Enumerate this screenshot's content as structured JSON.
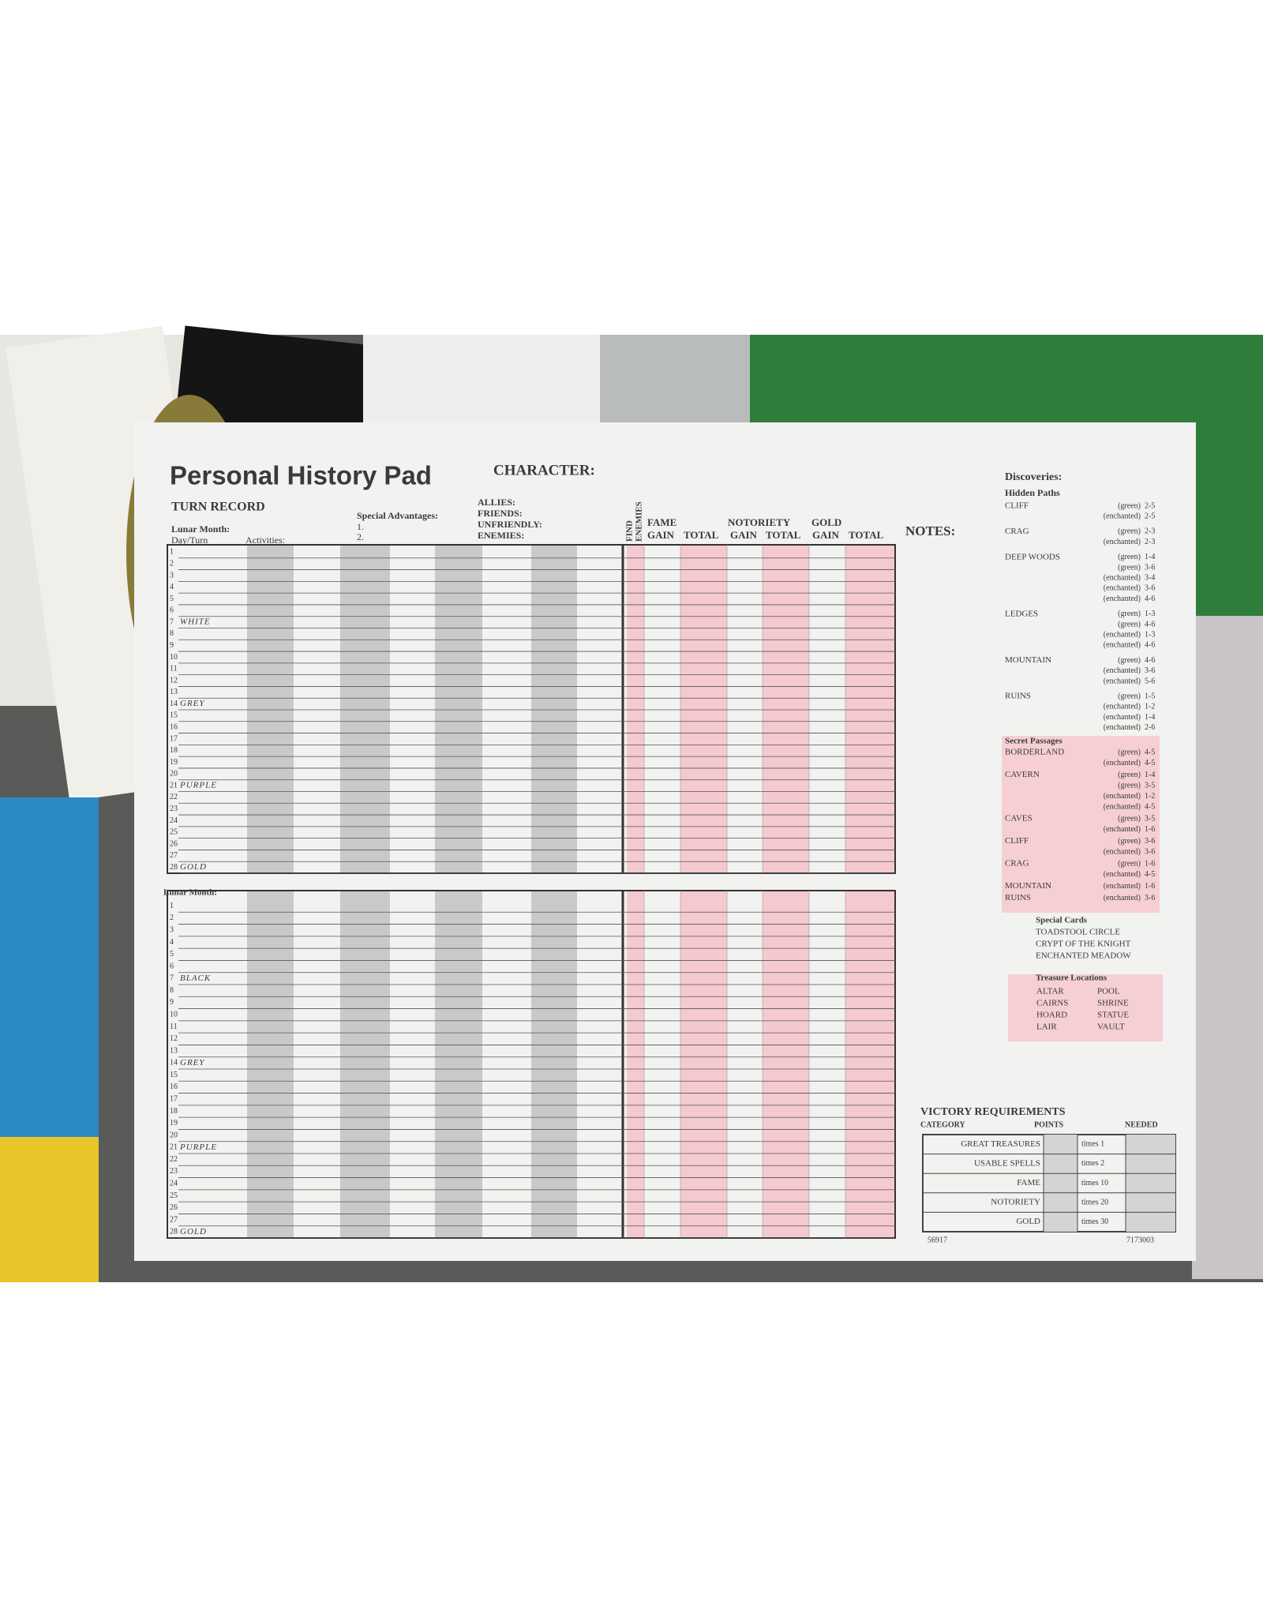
{
  "sheet": {
    "title": "Personal History Pad",
    "character": "CHARACTER:",
    "turn_record": "TURN RECORD",
    "lunar_month": "Lunar Month:",
    "day_turn": "Day/Turn",
    "activities": "Activities:",
    "special_advantages": "Special Advantages:",
    "advantage_slots": [
      "1.",
      "2."
    ],
    "relations": [
      "ALLIES:",
      "FRIENDS:",
      "UNFRIENDLY:",
      "ENEMIES:"
    ],
    "find_enemies": [
      "FIND",
      "ENEMIES"
    ],
    "score_columns": [
      {
        "name": "FAME",
        "parts": [
          "GAIN",
          "TOTAL"
        ]
      },
      {
        "name": "NOTORIETY",
        "parts": [
          "GAIN",
          "TOTAL"
        ]
      },
      {
        "name": "GOLD",
        "parts": [
          "GAIN",
          "TOTAL"
        ]
      }
    ],
    "notes": "NOTES:"
  },
  "months": [
    {
      "days": [
        1,
        2,
        3,
        4,
        5,
        6,
        7,
        8,
        9,
        10,
        11,
        12,
        13,
        14,
        15,
        16,
        17,
        18,
        19,
        20,
        21,
        22,
        23,
        24,
        25,
        26,
        27,
        28
      ],
      "colors": {
        "7": "WHITE",
        "14": "GREY",
        "21": "PURPLE",
        "28": "GOLD"
      }
    },
    {
      "label": "Lunar Month:",
      "days": [
        1,
        2,
        3,
        4,
        5,
        6,
        7,
        8,
        9,
        10,
        11,
        12,
        13,
        14,
        15,
        16,
        17,
        18,
        19,
        20,
        21,
        22,
        23,
        24,
        25,
        26,
        27,
        28
      ],
      "colors": {
        "7": "BLACK",
        "14": "GREY",
        "21": "PURPLE",
        "28": "GOLD"
      }
    }
  ],
  "discoveries": {
    "title": "Discoveries:",
    "hidden_paths": {
      "title": "Hidden Paths",
      "places": [
        {
          "name": "CLIFF",
          "entries": [
            [
              "(green)",
              "2-5"
            ],
            [
              "(enchanted)",
              "2-5"
            ]
          ]
        },
        {
          "name": "CRAG",
          "entries": [
            [
              "(green)",
              "2-3"
            ],
            [
              "(enchanted)",
              "2-3"
            ]
          ]
        },
        {
          "name": "DEEP WOODS",
          "entries": [
            [
              "(green)",
              "1-4"
            ],
            [
              "(green)",
              "3-6"
            ],
            [
              "(enchanted)",
              "3-4"
            ],
            [
              "(enchanted)",
              "3-6"
            ],
            [
              "(enchanted)",
              "4-6"
            ]
          ]
        },
        {
          "name": "LEDGES",
          "entries": [
            [
              "(green)",
              "1-3"
            ],
            [
              "(green)",
              "4-6"
            ],
            [
              "(enchanted)",
              "1-3"
            ],
            [
              "(enchanted)",
              "4-6"
            ]
          ]
        },
        {
          "name": "MOUNTAIN",
          "entries": [
            [
              "(green)",
              "4-6"
            ],
            [
              "(enchanted)",
              "3-6"
            ],
            [
              "(enchanted)",
              "5-6"
            ]
          ]
        },
        {
          "name": "RUINS",
          "entries": [
            [
              "(green)",
              "1-5"
            ],
            [
              "(enchanted)",
              "1-2"
            ],
            [
              "(enchanted)",
              "1-4"
            ],
            [
              "(enchanted)",
              "2-6"
            ]
          ]
        }
      ]
    },
    "secret_passages": {
      "title": "Secret Passages",
      "places": [
        {
          "name": "BORDERLAND",
          "entries": [
            [
              "(green)",
              "4-5"
            ],
            [
              "(enchanted)",
              "4-5"
            ]
          ]
        },
        {
          "name": "CAVERN",
          "entries": [
            [
              "(green)",
              "1-4"
            ],
            [
              "(green)",
              "3-5"
            ],
            [
              "(enchanted)",
              "1-2"
            ],
            [
              "(enchanted)",
              "4-5"
            ]
          ]
        },
        {
          "name": "CAVES",
          "entries": [
            [
              "(green)",
              "3-5"
            ],
            [
              "(enchanted)",
              "1-6"
            ]
          ]
        },
        {
          "name": "CLIFF",
          "entries": [
            [
              "(green)",
              "3-6"
            ],
            [
              "(enchanted)",
              "3-6"
            ]
          ]
        },
        {
          "name": "CRAG",
          "entries": [
            [
              "(green)",
              "1-6"
            ],
            [
              "(enchanted)",
              "4-5"
            ]
          ]
        },
        {
          "name": "MOUNTAIN",
          "entries": [
            [
              "(enchanted)",
              "1-6"
            ]
          ]
        },
        {
          "name": "RUINS",
          "entries": [
            [
              "(enchanted)",
              "3-6"
            ]
          ]
        }
      ]
    },
    "special_cards": {
      "title": "Special Cards",
      "items": [
        "TOADSTOOL CIRCLE",
        "CRYPT OF THE KNIGHT",
        "ENCHANTED MEADOW"
      ]
    },
    "treasure_locations": {
      "title": "Treasure Locations",
      "items": [
        "ALTAR",
        "POOL",
        "CAIRNS",
        "SHRINE",
        "HOARD",
        "STATUE",
        "LAIR",
        "VAULT"
      ]
    }
  },
  "victory": {
    "title": "VICTORY REQUIREMENTS",
    "headers": [
      "CATEGORY",
      "POINTS",
      "NEEDED"
    ],
    "rows": [
      [
        "GREAT TREASURES",
        "times 1"
      ],
      [
        "USABLE SPELLS",
        "times 2"
      ],
      [
        "FAME",
        "times 10"
      ],
      [
        "NOTORIETY",
        "times 20"
      ],
      [
        "GOLD",
        "times 30"
      ]
    ]
  },
  "footer": [
    "56917",
    "7173003"
  ]
}
